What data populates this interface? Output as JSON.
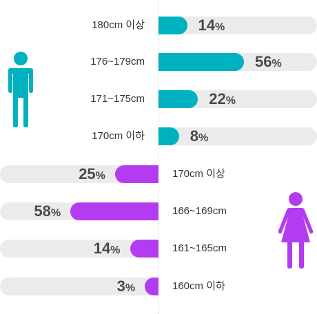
{
  "chart_data": [
    {
      "type": "bar",
      "orientation": "horizontal",
      "direction": "right",
      "color": "#00b2c0",
      "icon": "male-person-icon",
      "categories": [
        "180cm 이상",
        "176~179cm",
        "171~175cm",
        "170cm 이하"
      ],
      "values": [
        14,
        56,
        22,
        8
      ],
      "unit": "%",
      "xlim": [
        0,
        100
      ]
    },
    {
      "type": "bar",
      "orientation": "horizontal",
      "direction": "left",
      "color": "#b43cf0",
      "icon": "female-person-icon",
      "categories": [
        "170cm 이상",
        "166~169cm",
        "161~165cm",
        "160cm 이하"
      ],
      "values": [
        25,
        58,
        14,
        3
      ],
      "unit": "%",
      "xlim": [
        0,
        100
      ]
    }
  ]
}
